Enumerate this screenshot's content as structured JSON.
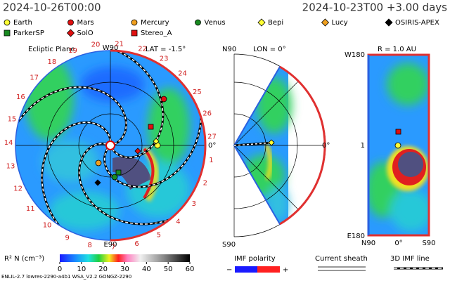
{
  "header": {
    "left": "2024-10-26T00:00",
    "right": "2024-10-23T00 +3.00 days"
  },
  "legend": [
    {
      "label": "Earth",
      "color": "#ffff33",
      "shape": "circle"
    },
    {
      "label": "Mars",
      "color": "#e01010",
      "shape": "circle"
    },
    {
      "label": "Mercury",
      "color": "#f0a020",
      "shape": "circle"
    },
    {
      "label": "Venus",
      "color": "#188a20",
      "shape": "circle"
    },
    {
      "label": "Bepi",
      "color": "#ffff33",
      "shape": "diamond"
    },
    {
      "label": "Lucy",
      "color": "#f0a020",
      "shape": "diamond"
    },
    {
      "label": "OSIRIS-APEX",
      "color": "#000000",
      "shape": "diamond"
    },
    {
      "label": "ParkerSP",
      "color": "#188a20",
      "shape": "square"
    },
    {
      "label": "SolO",
      "color": "#e01010",
      "shape": "diamond"
    },
    {
      "label": "Stereo_A",
      "color": "#e01010",
      "shape": "square"
    }
  ],
  "ecliptic": {
    "title": "Ecliptic Plane",
    "lat": "LAT = -1.5°",
    "top": "W90",
    "bottom": "E90",
    "zero": "0°",
    "sectors": [
      1,
      2,
      3,
      4,
      5,
      6,
      7,
      8,
      9,
      10,
      11,
      12,
      13,
      14,
      15,
      16,
      17,
      18,
      19,
      20,
      21,
      22,
      23,
      24,
      25,
      26,
      27
    ]
  },
  "meridional": {
    "lon": "LON = 0°",
    "top": "N90",
    "bottom": "S90",
    "zero": "0°"
  },
  "radial": {
    "r": "R = 1.0 AU",
    "top": "W180",
    "bottom": "E180",
    "left": "N90",
    "mid": "0°",
    "right": "S90",
    "one": "1"
  },
  "colorbar": {
    "label": "R² N (cm⁻³)",
    "ticks": [
      0,
      10,
      20,
      30,
      40,
      50,
      60
    ]
  },
  "imf": {
    "label": "IMF polarity",
    "minus": "−",
    "plus": "+"
  },
  "sheath": "Current sheath",
  "imf3d": "3D IMF line",
  "footer": "ENLIL-2.7 lowres-2290-a4b1 WSA_V2.2 GONGZ-2290"
}
